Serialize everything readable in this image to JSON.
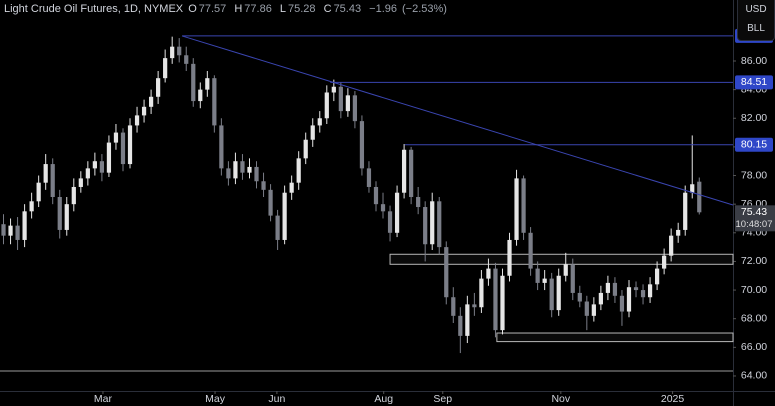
{
  "chart_data": {
    "type": "candlestick",
    "symbol": "Light Crude Oil Futures, 1D, NYMEX",
    "ohlc_labels": [
      "O",
      "H",
      "L",
      "C"
    ],
    "change": {
      "value": -1.96,
      "label": "−1.96"
    },
    "change_pct": {
      "value": -2.53,
      "label": "(−2.53%)"
    },
    "countdown": "10:48:07",
    "buttons": [
      "USD",
      "BLL"
    ],
    "up_color": "#e6e6e6",
    "down_color": "#7b7e88",
    "level_color": "#3a45b0",
    "candles": [
      [
        74.6,
        75.3,
        73.2,
        73.8
      ],
      [
        73.8,
        75.0,
        73.2,
        74.5
      ],
      [
        74.5,
        75.1,
        72.8,
        73.5
      ],
      [
        73.5,
        76.0,
        73.0,
        75.5
      ],
      [
        75.5,
        76.8,
        75.0,
        76.2
      ],
      [
        76.2,
        78.0,
        75.8,
        77.5
      ],
      [
        77.5,
        79.5,
        77.0,
        78.8
      ],
      [
        78.8,
        79.2,
        76.0,
        76.5
      ],
      [
        76.5,
        77.0,
        73.6,
        74.2
      ],
      [
        74.2,
        76.5,
        73.8,
        76.0
      ],
      [
        76.0,
        77.8,
        75.5,
        77.2
      ],
      [
        77.2,
        78.3,
        76.8,
        77.8
      ],
      [
        77.8,
        79.0,
        77.3,
        78.5
      ],
      [
        78.5,
        79.6,
        78.0,
        79.0
      ],
      [
        79.0,
        79.5,
        77.6,
        78.2
      ],
      [
        78.2,
        80.8,
        77.9,
        80.3
      ],
      [
        80.3,
        81.6,
        79.8,
        81.0
      ],
      [
        81.0,
        81.3,
        78.3,
        78.8
      ],
      [
        78.8,
        82.0,
        78.5,
        81.5
      ],
      [
        81.5,
        82.8,
        81.0,
        82.2
      ],
      [
        82.2,
        83.3,
        81.7,
        82.8
      ],
      [
        82.8,
        84.0,
        82.3,
        83.5
      ],
      [
        83.5,
        85.3,
        83.0,
        84.8
      ],
      [
        84.8,
        86.8,
        84.5,
        86.2
      ],
      [
        86.2,
        87.7,
        85.8,
        87.0
      ],
      [
        87.0,
        87.6,
        85.9,
        86.4
      ],
      [
        86.4,
        87.0,
        85.3,
        85.8
      ],
      [
        85.8,
        86.2,
        82.8,
        83.2
      ],
      [
        83.2,
        84.5,
        82.7,
        84.0
      ],
      [
        84.0,
        85.3,
        83.5,
        84.8
      ],
      [
        84.8,
        85.0,
        81.0,
        81.5
      ],
      [
        81.5,
        82.0,
        78.0,
        78.5
      ],
      [
        78.5,
        79.0,
        77.3,
        77.8
      ],
      [
        77.8,
        79.6,
        77.4,
        79.0
      ],
      [
        79.0,
        79.5,
        77.7,
        78.2
      ],
      [
        78.2,
        79.2,
        77.8,
        78.6
      ],
      [
        78.6,
        79.0,
        77.1,
        77.6
      ],
      [
        77.6,
        78.2,
        76.5,
        77.0
      ],
      [
        77.0,
        77.4,
        74.8,
        75.2
      ],
      [
        75.2,
        75.6,
        72.8,
        73.5
      ],
      [
        73.5,
        77.3,
        73.2,
        76.8
      ],
      [
        76.8,
        78.0,
        76.3,
        77.5
      ],
      [
        77.5,
        79.7,
        77.0,
        79.2
      ],
      [
        79.2,
        81.0,
        78.8,
        80.5
      ],
      [
        80.5,
        82.0,
        80.0,
        81.5
      ],
      [
        81.5,
        82.5,
        81.0,
        82.0
      ],
      [
        82.0,
        84.3,
        81.6,
        83.8
      ],
      [
        83.8,
        84.7,
        83.2,
        84.2
      ],
      [
        84.2,
        84.5,
        82.0,
        82.5
      ],
      [
        82.5,
        84.1,
        82.1,
        83.6
      ],
      [
        83.6,
        83.9,
        81.3,
        81.8
      ],
      [
        81.8,
        82.2,
        78.0,
        78.5
      ],
      [
        78.5,
        79.0,
        76.8,
        77.2
      ],
      [
        77.2,
        77.6,
        75.5,
        76.0
      ],
      [
        76.0,
        76.8,
        75.0,
        75.5
      ],
      [
        75.5,
        75.9,
        73.4,
        74.0
      ],
      [
        74.0,
        77.3,
        73.7,
        76.8
      ],
      [
        76.8,
        80.2,
        76.4,
        79.8
      ],
      [
        79.8,
        80.0,
        76.0,
        76.5
      ],
      [
        76.5,
        77.2,
        75.3,
        75.8
      ],
      [
        75.8,
        76.2,
        72.0,
        73.2
      ],
      [
        73.2,
        76.8,
        72.8,
        76.2
      ],
      [
        76.2,
        76.5,
        72.5,
        73.0
      ],
      [
        73.0,
        73.4,
        69.0,
        69.5
      ],
      [
        69.5,
        70.2,
        67.7,
        68.2
      ],
      [
        68.2,
        68.8,
        65.6,
        66.8
      ],
      [
        66.8,
        69.6,
        66.3,
        69.0
      ],
      [
        69.0,
        69.8,
        68.2,
        68.8
      ],
      [
        68.8,
        71.4,
        68.4,
        70.8
      ],
      [
        70.8,
        72.2,
        70.3,
        71.5
      ],
      [
        71.5,
        71.9,
        66.7,
        67.2
      ],
      [
        67.2,
        71.5,
        66.9,
        71.0
      ],
      [
        71.0,
        74.0,
        70.6,
        73.5
      ],
      [
        73.5,
        78.4,
        73.1,
        77.8
      ],
      [
        77.8,
        78.0,
        73.5,
        74.0
      ],
      [
        74.0,
        74.4,
        71.0,
        71.5
      ],
      [
        71.5,
        72.0,
        70.0,
        70.5
      ],
      [
        70.5,
        71.4,
        70.0,
        70.8
      ],
      [
        70.8,
        71.2,
        68.1,
        68.6
      ],
      [
        68.6,
        71.5,
        68.2,
        71.0
      ],
      [
        71.0,
        72.6,
        70.6,
        71.8
      ],
      [
        71.8,
        72.2,
        69.3,
        69.8
      ],
      [
        69.8,
        70.3,
        68.8,
        69.2
      ],
      [
        69.2,
        69.6,
        67.2,
        68.2
      ],
      [
        68.2,
        69.5,
        67.8,
        69.0
      ],
      [
        69.0,
        70.3,
        68.6,
        69.8
      ],
      [
        69.8,
        71.0,
        69.3,
        70.5
      ],
      [
        70.5,
        70.9,
        69.1,
        69.6
      ],
      [
        69.6,
        70.0,
        67.5,
        68.5
      ],
      [
        68.5,
        70.7,
        68.1,
        70.2
      ],
      [
        70.2,
        70.6,
        69.5,
        70.0
      ],
      [
        70.0,
        70.4,
        69.0,
        69.5
      ],
      [
        69.5,
        70.9,
        69.1,
        70.4
      ],
      [
        70.4,
        72.0,
        70.0,
        71.5
      ],
      [
        71.5,
        72.9,
        71.1,
        72.4
      ],
      [
        72.4,
        74.3,
        72.0,
        73.8
      ],
      [
        73.8,
        74.7,
        73.3,
        74.2
      ],
      [
        74.2,
        77.3,
        73.8,
        76.8
      ],
      [
        76.8,
        80.8,
        76.4,
        77.39
      ],
      [
        77.57,
        77.86,
        75.28,
        75.43
      ]
    ],
    "xlim": [
      -0.5,
      103.8
    ],
    "xticks": [
      {
        "value": 14.15,
        "label": "Mar"
      },
      {
        "value": 30.1,
        "label": "May"
      },
      {
        "value": 38.9,
        "label": "Jun"
      },
      {
        "value": 54.1,
        "label": "Aug"
      },
      {
        "value": 62.5,
        "label": "Sep"
      },
      {
        "value": 79.3,
        "label": "Nov"
      },
      {
        "value": 95.2,
        "label": "2025"
      }
    ],
    "ylim": [
      62.95,
      90.26
    ],
    "yticks": [
      {
        "value": 64,
        "label": "64.00"
      },
      {
        "value": 66,
        "label": "66.00"
      },
      {
        "value": 68,
        "label": "68.00"
      },
      {
        "value": 70,
        "label": "70.00"
      },
      {
        "value": 72,
        "label": "72.00"
      },
      {
        "value": 74,
        "label": "74.00"
      },
      {
        "value": 76,
        "label": "76.00"
      },
      {
        "value": 78,
        "label": "78.00"
      },
      {
        "value": 80,
        "label": "80.00"
      },
      {
        "value": 82,
        "label": "82.00"
      },
      {
        "value": 84,
        "label": "84.00"
      },
      {
        "value": 86,
        "label": "86.00"
      }
    ],
    "levels": [
      {
        "value": 87.75,
        "from": 25.4
      },
      {
        "value": 84.51,
        "from": 46.5
      },
      {
        "value": 80.15,
        "from": 57.1
      }
    ],
    "zones": [
      {
        "top": 72.5,
        "bottom": 71.8,
        "from": 55
      },
      {
        "top": 67.0,
        "bottom": 66.4,
        "from": 70.2
      }
    ],
    "support": 64.35,
    "trendline": {
      "x": [
        25.4,
        103.8
      ],
      "y": [
        87.75,
        75.94
      ]
    }
  }
}
